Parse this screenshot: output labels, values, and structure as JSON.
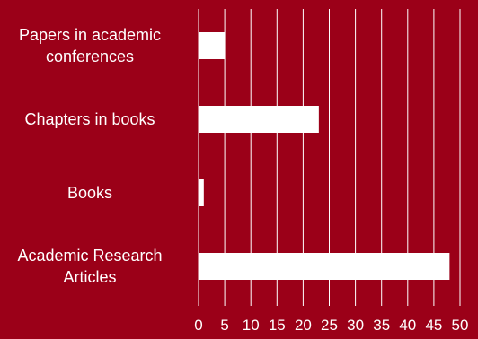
{
  "chart_data": {
    "type": "bar",
    "orientation": "horizontal",
    "categories": [
      [
        "Papers in academic",
        "conferences"
      ],
      [
        "Chapters in books"
      ],
      [
        "Books"
      ],
      [
        "Academic Research",
        "Articles"
      ]
    ],
    "values": [
      5,
      23,
      1,
      48
    ],
    "xlim": [
      0,
      50
    ],
    "xticks": [
      "0",
      "5",
      "10",
      "15",
      "20",
      "25",
      "30",
      "35",
      "40",
      "45",
      "50"
    ],
    "grid": true,
    "colors": {
      "background": "#9b0018",
      "bar": "#ffffff",
      "grid": "#ffffff",
      "text": "#ffffff"
    }
  }
}
